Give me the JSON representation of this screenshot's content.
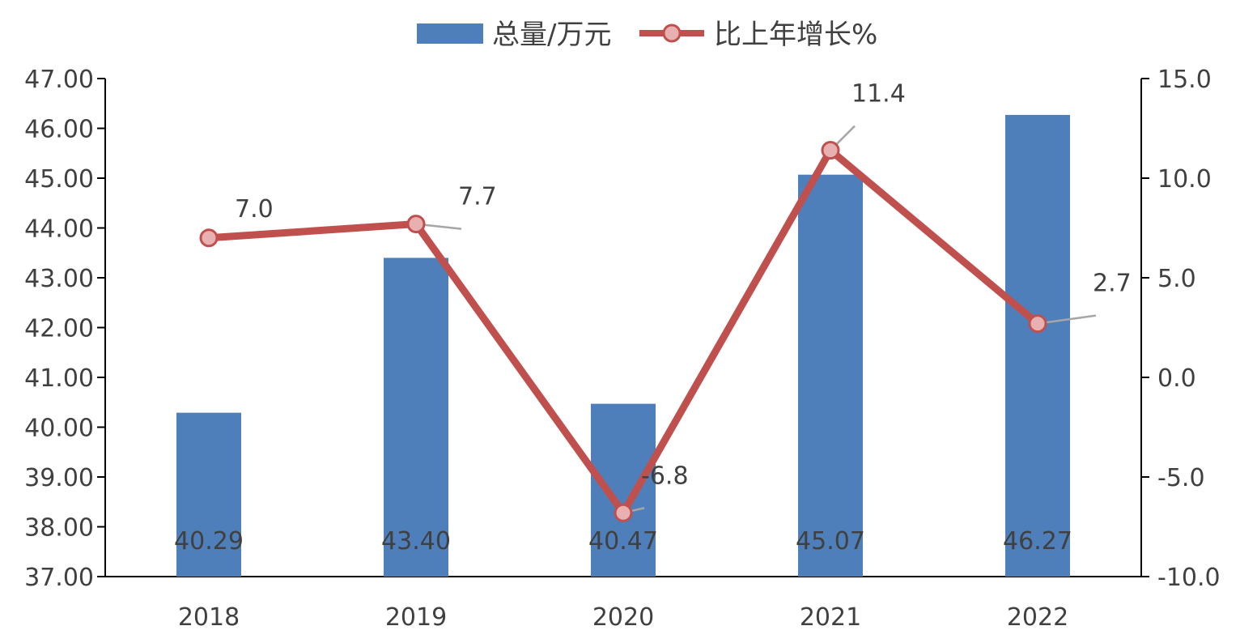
{
  "chart_data": {
    "type": "bar",
    "categories": [
      "2018",
      "2019",
      "2020",
      "2021",
      "2022"
    ],
    "series": [
      {
        "name": "总量/万元",
        "type": "bar",
        "axis": "left",
        "values": [
          40.29,
          43.4,
          40.47,
          45.07,
          46.27
        ],
        "value_labels": [
          "40.29",
          "43.40",
          "40.47",
          "45.07",
          "46.27"
        ],
        "color": "#4E7FBB"
      },
      {
        "name": "比上年增长%",
        "type": "line",
        "axis": "right",
        "values": [
          7.0,
          7.7,
          -6.8,
          11.4,
          2.7
        ],
        "value_labels": [
          "7.0",
          "7.7",
          "-6.8",
          "11.4",
          "2.7"
        ],
        "color": "#C0504D",
        "marker_fill": "#E8B0B0"
      }
    ],
    "y_left": {
      "ylim": [
        37,
        47
      ],
      "ticks": [
        "37.00",
        "38.00",
        "39.00",
        "40.00",
        "41.00",
        "42.00",
        "43.00",
        "44.00",
        "45.00",
        "46.00",
        "47.00"
      ]
    },
    "y_right": {
      "ylim": [
        -10,
        15
      ],
      "ticks": [
        "-10.0",
        "-5.0",
        "0.0",
        "5.0",
        "10.0",
        "15.0"
      ]
    },
    "legend": "top",
    "grid": false,
    "axis_color": "#000000",
    "leader_color": "#A6A6A6"
  }
}
